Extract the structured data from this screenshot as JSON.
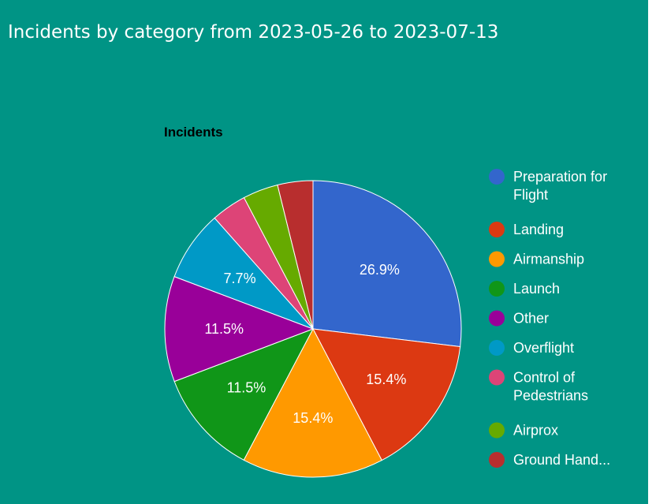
{
  "panel": {
    "title": "Incidents by category from 2023-05-26 to 2023-07-13",
    "background": "#009485"
  },
  "chart_data": {
    "type": "pie",
    "title": "Incidents",
    "legend_position": "right",
    "slices": [
      {
        "label": "Preparation for Flight",
        "value": 26.9,
        "display": "26.9%",
        "color": "#3366cc",
        "legend_lines": [
          "Preparation for",
          "Flight"
        ]
      },
      {
        "label": "Landing",
        "value": 15.4,
        "display": "15.4%",
        "color": "#dc3912",
        "legend_lines": [
          "Landing"
        ]
      },
      {
        "label": "Airmanship",
        "value": 15.4,
        "display": "15.4%",
        "color": "#ff9900",
        "legend_lines": [
          "Airmanship"
        ]
      },
      {
        "label": "Launch",
        "value": 11.5,
        "display": "11.5%",
        "color": "#109618",
        "legend_lines": [
          "Launch"
        ]
      },
      {
        "label": "Other",
        "value": 11.5,
        "display": "11.5%",
        "color": "#990099",
        "legend_lines": [
          "Other"
        ]
      },
      {
        "label": "Overflight",
        "value": 7.7,
        "display": "7.7%",
        "color": "#0099c6",
        "legend_lines": [
          "Overflight"
        ]
      },
      {
        "label": "Control of Pedestrians",
        "value": 3.85,
        "display": "",
        "color": "#dd4477",
        "legend_lines": [
          "Control of",
          "Pedestrians"
        ]
      },
      {
        "label": "Airprox",
        "value": 3.85,
        "display": "",
        "color": "#66aa00",
        "legend_lines": [
          "Airprox"
        ]
      },
      {
        "label": "Ground Hand...",
        "value": 3.85,
        "display": "",
        "color": "#b82e2e",
        "legend_lines": [
          "Ground Hand..."
        ]
      }
    ]
  }
}
